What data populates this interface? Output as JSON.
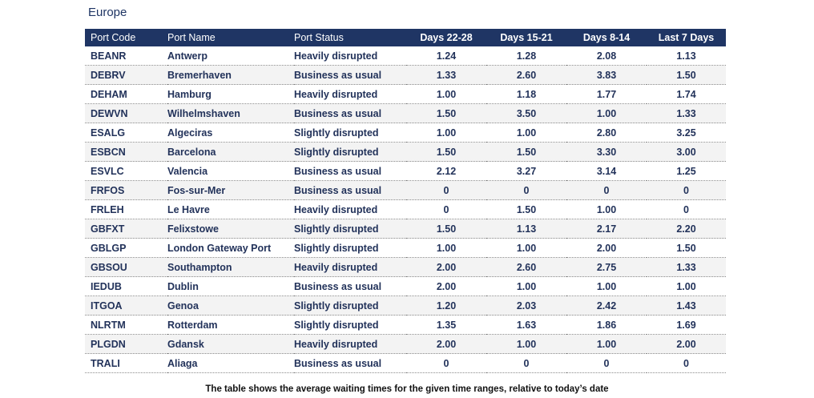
{
  "title": "Europe",
  "headers": [
    "Port Code",
    "Port Name",
    "Port Status",
    "Days 22-28",
    "Days 15-21",
    "Days 8-14",
    "Last 7 Days"
  ],
  "rows": [
    [
      "BEANR",
      "Antwerp",
      "Heavily disrupted",
      "1.24",
      "1.28",
      "2.08",
      "1.13"
    ],
    [
      "DEBRV",
      "Bremerhaven",
      "Business as usual",
      "1.33",
      "2.60",
      "3.83",
      "1.50"
    ],
    [
      "DEHAM",
      "Hamburg",
      "Heavily disrupted",
      "1.00",
      "1.18",
      "1.77",
      "1.74"
    ],
    [
      "DEWVN",
      "Wilhelmshaven",
      "Business as usual",
      "1.50",
      "3.50",
      "1.00",
      "1.33"
    ],
    [
      "ESALG",
      "Algeciras",
      "Slightly disrupted",
      "1.00",
      "1.00",
      "2.80",
      "3.25"
    ],
    [
      "ESBCN",
      "Barcelona",
      "Slightly disrupted",
      "1.50",
      "1.50",
      "3.30",
      "3.00"
    ],
    [
      "ESVLC",
      "Valencia",
      "Business as usual",
      "2.12",
      "3.27",
      "3.14",
      "1.25"
    ],
    [
      "FRFOS",
      "Fos-sur-Mer",
      "Business as usual",
      "0",
      "0",
      "0",
      "0"
    ],
    [
      "FRLEH",
      "Le Havre",
      "Heavily disrupted",
      "0",
      "1.50",
      "1.00",
      "0"
    ],
    [
      "GBFXT",
      "Felixstowe",
      "Slightly disrupted",
      "1.50",
      "1.13",
      "2.17",
      "2.20"
    ],
    [
      "GBLGP",
      "London Gateway Port",
      "Slightly disrupted",
      "1.00",
      "1.00",
      "2.00",
      "1.50"
    ],
    [
      "GBSOU",
      "Southampton",
      "Heavily disrupted",
      "2.00",
      "2.60",
      "2.75",
      "1.33"
    ],
    [
      "IEDUB",
      "Dublin",
      "Business as usual",
      "2.00",
      "1.00",
      "1.00",
      "1.00"
    ],
    [
      "ITGOA",
      "Genoa",
      "Slightly disrupted",
      "1.20",
      "2.03",
      "2.42",
      "1.43"
    ],
    [
      "NLRTM",
      "Rotterdam",
      "Slightly disrupted",
      "1.35",
      "1.63",
      "1.86",
      "1.69"
    ],
    [
      "PLGDN",
      "Gdansk",
      "Heavily disrupted",
      "2.00",
      "1.00",
      "1.00",
      "2.00"
    ],
    [
      "TRALI",
      "Aliaga",
      "Business as usual",
      "0",
      "0",
      "0",
      "0"
    ]
  ],
  "caption": "The table shows the average waiting times for the given time ranges, relative to today’s date",
  "colors": {
    "header_bg": "#1f3564",
    "text": "#22325a",
    "alt_row": "#f3f3f3"
  }
}
